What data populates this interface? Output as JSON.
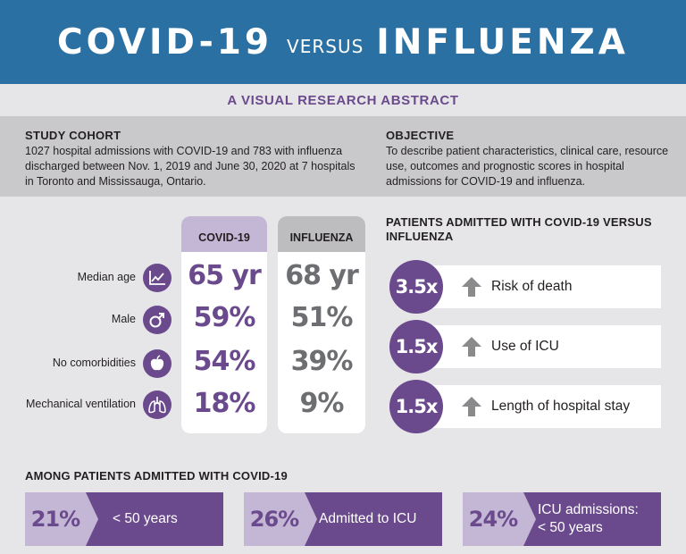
{
  "header": {
    "part1": "COVID-19",
    "part2": "VERSUS",
    "part3": "INFLUENZA"
  },
  "subtitle": "A VISUAL RESEARCH ABSTRACT",
  "cohort": {
    "title": "STUDY COHORT",
    "text": "1027 hospital admissions with COVID-19 and 783 with influenza discharged between Nov. 1, 2019 and June 30, 2020 at 7 hospitals in Toronto and Mississauga, Ontario."
  },
  "objective": {
    "title": "OBJECTIVE",
    "text": "To describe patient characteristics, clinical care, resource use, outcomes and prognostic scores in hospital admissions for COVID-19 and influenza."
  },
  "comparison": {
    "covid_header": "COVID-19",
    "flu_header": "INFLUENZA",
    "rows": [
      {
        "label": "Median age",
        "icon": "line-chart-icon",
        "covid": "65 yr",
        "flu": "68 yr"
      },
      {
        "label": "Male",
        "icon": "male-symbol-icon",
        "covid": "59%",
        "flu": "51%"
      },
      {
        "label": "No comorbidities",
        "icon": "apple-icon",
        "covid": "54%",
        "flu": "39%"
      },
      {
        "label": "Mechanical ventilation",
        "icon": "lungs-icon",
        "covid": "18%",
        "flu": "9%"
      }
    ]
  },
  "patients_admitted": {
    "title": "PATIENTS ADMITTED WITH COVID-19 VERSUS INFLUENZA",
    "items": [
      {
        "value": "3.5x",
        "label": "Risk of death"
      },
      {
        "value": "1.5x",
        "label": "Use of ICU"
      },
      {
        "value": "1.5x",
        "label": "Length of hospital stay"
      }
    ]
  },
  "among": {
    "title": "AMONG PATIENTS ADMITTED WITH COVID-19",
    "items": [
      {
        "value": "21%",
        "label": "< 50 years"
      },
      {
        "value": "26%",
        "label": "Admitted to ICU"
      },
      {
        "value": "24%",
        "label": "ICU admissions: < 50 years"
      }
    ]
  },
  "colors": {
    "header_blue": "#2a70a3",
    "purple": "#6a4a8c",
    "light_purple": "#c4b6d5",
    "gray": "#6d6e71"
  }
}
